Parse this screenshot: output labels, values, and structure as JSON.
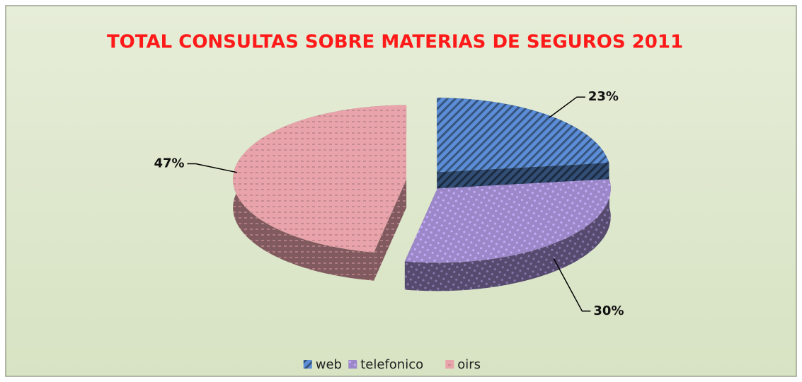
{
  "chart_data": {
    "type": "pie3d",
    "title": "TOTAL CONSULTAS SOBRE MATERIAS DE SEGUROS 2011",
    "categories": [
      "web",
      "telefonico",
      "oirs"
    ],
    "values": [
      23,
      30,
      47
    ],
    "value_labels": [
      "23%",
      "30%",
      "47%"
    ],
    "colors": [
      "#5b8ed6",
      "#9c88c8",
      "#e8a4aa"
    ],
    "legend": "bottom"
  }
}
